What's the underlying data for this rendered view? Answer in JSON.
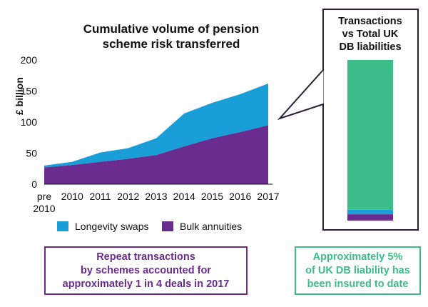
{
  "chart_data": [
    {
      "type": "area",
      "title_lines": [
        "Cumulative volume of pension",
        "scheme risk transferred"
      ],
      "ylabel": "£ billion",
      "x_tick_labels": [
        "pre\n2010",
        "2010",
        "2011",
        "2012",
        "2013",
        "2014",
        "2015",
        "2016",
        "2017"
      ],
      "y_ticks": [
        0,
        50,
        100,
        150,
        200
      ],
      "ylim": [
        0,
        200
      ],
      "stacked": true,
      "series": [
        {
          "name": "Bulk annuities",
          "color": "#6b2c8f",
          "values": [
            27,
            31,
            36,
            41,
            47,
            61,
            74,
            84,
            95
          ]
        },
        {
          "name": "Longevity swaps",
          "color": "#1a9ed8",
          "values": [
            3,
            5,
            15,
            17,
            27,
            53,
            57,
            61,
            67
          ]
        }
      ],
      "legend": [
        {
          "label": "Longevity swaps",
          "color": "#1a9ed8"
        },
        {
          "label": "Bulk annuities",
          "color": "#6b2c8f"
        }
      ],
      "legend_position": "bottom"
    },
    {
      "type": "bar",
      "title_lines": [
        "Transactions",
        "vs Total UK",
        "DB liabilities"
      ],
      "stacked": true,
      "segments": [
        {
          "name": "Bulk annuities",
          "color": "#6b2c8f",
          "value": 95
        },
        {
          "name": "Longevity swaps",
          "color": "#1a9ed8",
          "value": 67
        },
        {
          "name": "Total UK DB liabilities",
          "color": "#3dbb88",
          "value": 2238
        }
      ]
    }
  ],
  "notes": {
    "left_lines": [
      "Repeat transactions",
      "by schemes accounted for",
      "approximately 1 in 4 deals in 2017"
    ],
    "right_lines": [
      "Approximately 5%",
      "of UK DB liability has",
      "been insured to date"
    ]
  },
  "colors": {
    "purple": "#6b2c8f",
    "blue": "#1a9ed8",
    "green": "#3dbb88",
    "callout_border": "#2a1e3a"
  }
}
